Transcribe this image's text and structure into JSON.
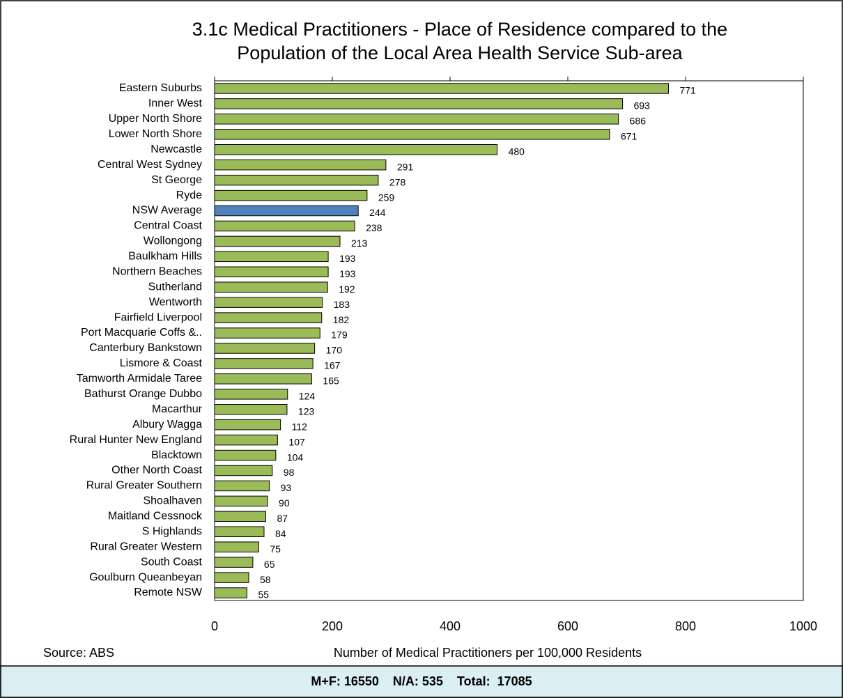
{
  "chart_data": {
    "type": "hbar",
    "title": [
      "3.1c  Medical Practitioners - Place of Residence compared to the",
      "Population of the Local Area Health Service Sub-area"
    ],
    "x_label": "Number of Medical Practitioners per 100,000 Residents",
    "source": "Source: ABS",
    "footer": "M+F: 16550    N/A: 535    Total:  17085",
    "categories": [
      "Eastern Suburbs",
      "Inner West",
      "Upper North Shore",
      "Lower North Shore",
      "Newcastle",
      "Central West Sydney",
      "St George",
      "Ryde",
      "NSW Average",
      "Central Coast",
      "Wollongong",
      "Baulkham Hills",
      "Northern Beaches",
      "Sutherland",
      "Wentworth",
      "Fairfield Liverpool",
      "Port Macquarie Coffs &..",
      "Canterbury Bankstown",
      "Lismore & Coast",
      "Tamworth Armidale Taree",
      "Bathurst Orange Dubbo",
      "Macarthur",
      "Albury Wagga",
      "Rural Hunter New England",
      "Blacktown",
      "Other North Coast",
      "Rural Greater Southern",
      "Shoalhaven",
      "Maitland Cessnock",
      "S Highlands",
      "Rural Greater Western",
      "South Coast",
      "Goulburn Queanbeyan",
      "Remote NSW"
    ],
    "values": [
      771,
      693,
      686,
      671,
      480,
      291,
      278,
      259,
      244,
      238,
      213,
      193,
      193,
      192,
      183,
      182,
      179,
      170,
      167,
      165,
      124,
      123,
      112,
      107,
      104,
      98,
      93,
      90,
      87,
      84,
      75,
      65,
      58,
      55
    ],
    "colors": [
      "#9bbb59",
      "#9bbb59",
      "#9bbb59",
      "#9bbb59",
      "#9bbb59",
      "#9bbb59",
      "#9bbb59",
      "#9bbb59",
      "#4f81bd",
      "#9bbb59",
      "#9bbb59",
      "#9bbb59",
      "#9bbb59",
      "#9bbb59",
      "#9bbb59",
      "#9bbb59",
      "#9bbb59",
      "#9bbb59",
      "#9bbb59",
      "#9bbb59",
      "#9bbb59",
      "#9bbb59",
      "#9bbb59",
      "#9bbb59",
      "#9bbb59",
      "#9bbb59",
      "#9bbb59",
      "#9bbb59",
      "#9bbb59",
      "#9bbb59",
      "#9bbb59",
      "#9bbb59",
      "#9bbb59",
      "#9bbb59"
    ],
    "xlim": [
      0,
      1000
    ],
    "xticks": [
      0,
      200,
      400,
      600,
      800,
      1000
    ]
  }
}
